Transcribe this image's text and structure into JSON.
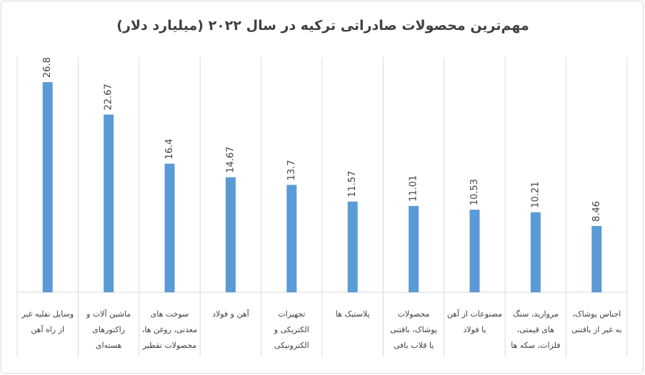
{
  "chart_data": {
    "type": "bar",
    "title": "مهم‌ترین محصولات صادراتی ترکیه در سال ۲۰۲۲ (میلیارد دلار)",
    "categories": [
      "وسایل نقلیه غیر\nاز راه آهن",
      "ماشین آلات و\nراکتورهای\nهسته‌ای",
      "سوخت های\nمعدنی، روغن ها،\nمحصولات تقطیر",
      "آهن و فولاد",
      "تجهیزات\nالکتریکی و\nالکترونیکی",
      "پلاستیک ها",
      "محصولات\nپوشاک، بافتنی\nیا قلاب بافی",
      "مصنوعات از آهن\nیا فولاد",
      "مروارید، سنگ\nهای قیمتی،\nفلزات، سکه ها",
      "اجناس پوشاک،\nبه غیر از بافتنی"
    ],
    "values": [
      26.8,
      22.67,
      16.4,
      14.67,
      13.7,
      11.57,
      11.01,
      10.53,
      10.21,
      8.46
    ],
    "color": "#5b9bd5",
    "ylim": [
      0,
      30
    ]
  }
}
